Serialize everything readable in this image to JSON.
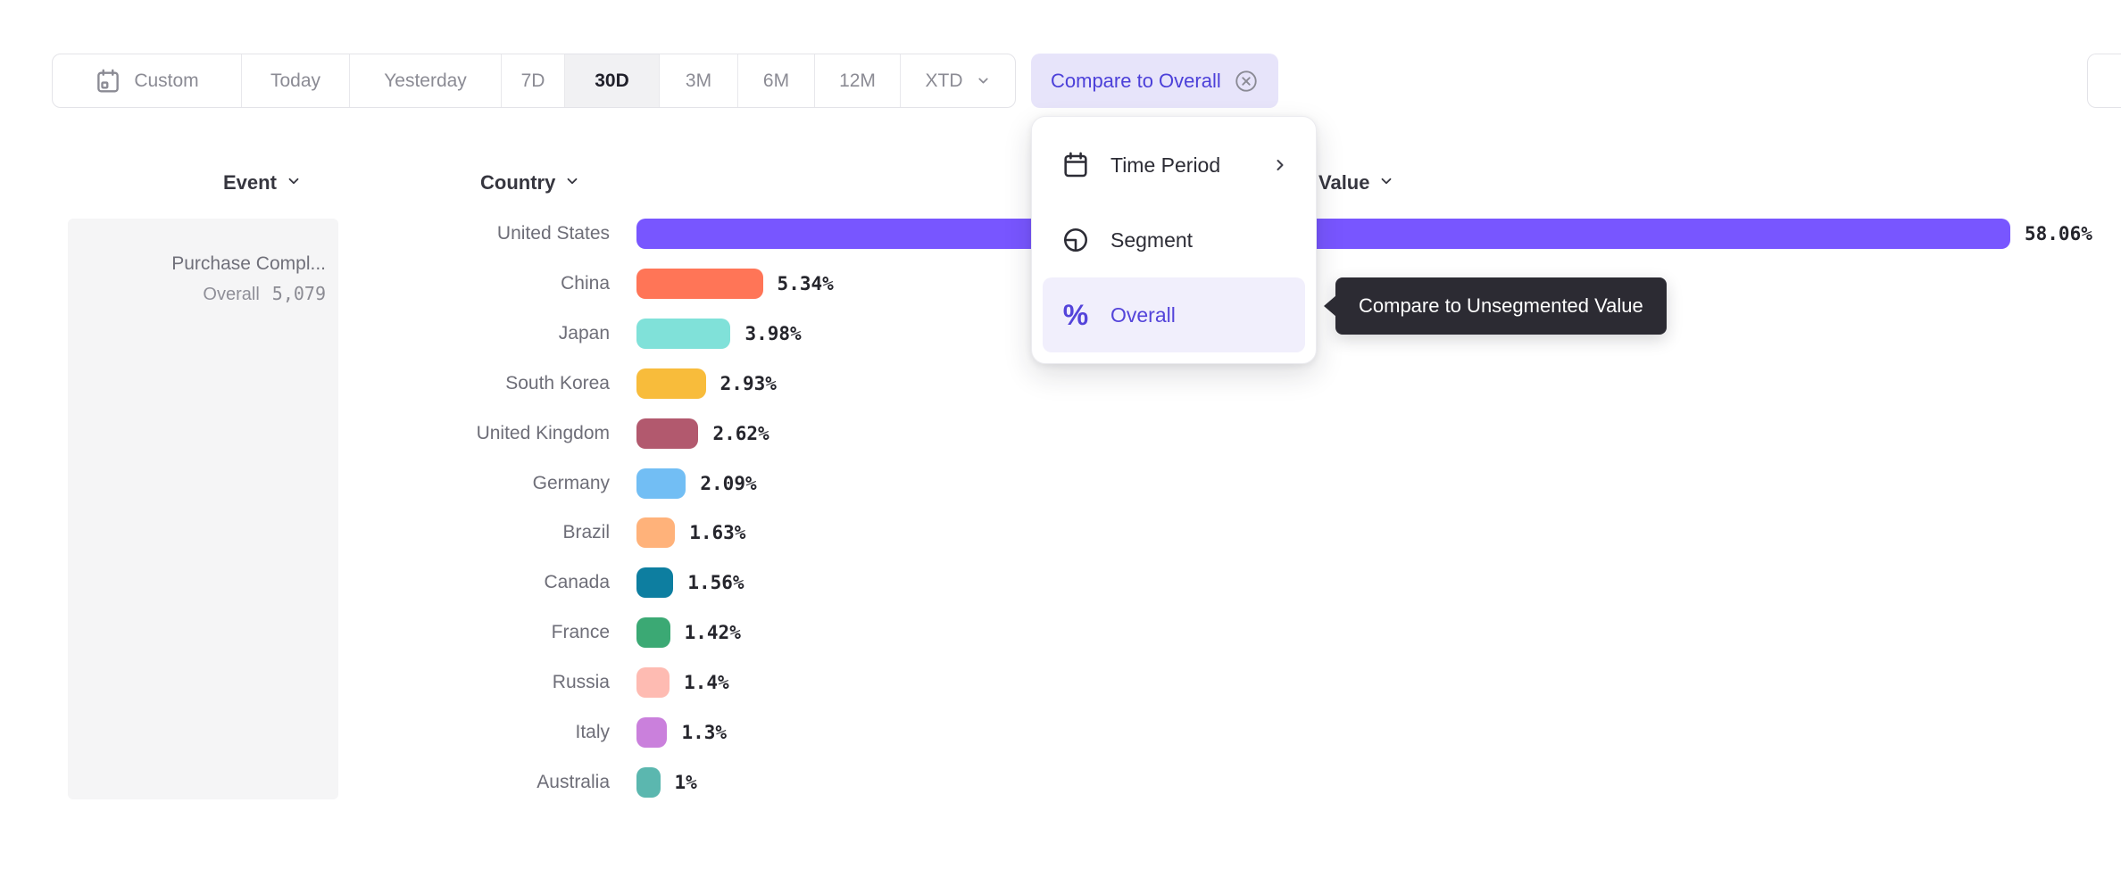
{
  "toolbar": {
    "buttons": [
      {
        "label": "Custom",
        "icon": "calendar-icon",
        "selected": false
      },
      {
        "label": "Today",
        "selected": false
      },
      {
        "label": "Yesterday",
        "selected": false
      },
      {
        "label": "7D",
        "selected": false
      },
      {
        "label": "30D",
        "selected": true
      },
      {
        "label": "3M",
        "selected": false
      },
      {
        "label": "6M",
        "selected": false
      },
      {
        "label": "12M",
        "selected": false
      },
      {
        "label": "XTD",
        "chevron": true,
        "selected": false
      }
    ],
    "compare_chip": {
      "label": "Compare to Overall",
      "icon": "circle-x-icon"
    }
  },
  "headers": {
    "event": "Event",
    "country": "Country",
    "value": "Value"
  },
  "sidebar": {
    "event_name": "Purchase Compl...",
    "overall_label": "Overall",
    "overall_value": "5,079"
  },
  "menu": {
    "items": [
      {
        "label": "Time Period",
        "icon": "calendar-icon",
        "chevron": true,
        "active": false
      },
      {
        "label": "Segment",
        "icon": "segment-icon",
        "chevron": false,
        "active": false
      },
      {
        "label": "Overall",
        "icon": "percent-icon",
        "chevron": false,
        "active": true
      }
    ]
  },
  "tooltip": {
    "text": "Compare to Unsegmented Value"
  },
  "chart_data": {
    "type": "bar",
    "orientation": "horizontal",
    "title": "",
    "xlabel": "Value",
    "ylabel": "Country",
    "categories": [
      "United States",
      "China",
      "Japan",
      "South Korea",
      "United Kingdom",
      "Germany",
      "Brazil",
      "Canada",
      "France",
      "Russia",
      "Italy",
      "Australia"
    ],
    "values": [
      58.06,
      5.34,
      3.98,
      2.93,
      2.62,
      2.09,
      1.63,
      1.56,
      1.42,
      1.4,
      1.3,
      1.0
    ],
    "value_labels": [
      "58.06%",
      "5.34%",
      "3.98%",
      "2.93%",
      "2.62%",
      "2.09%",
      "1.63%",
      "1.56%",
      "1.42%",
      "1.4%",
      "1.3%",
      "1%"
    ],
    "colors": [
      "#7856FF",
      "#FF7557",
      "#80E1D9",
      "#F8BC3B",
      "#B2596E",
      "#72BEF4",
      "#FFB27A",
      "#0D7EA0",
      "#3BA974",
      "#FEBBB2",
      "#CA80DC",
      "#5BB7AF"
    ],
    "xlim": [
      0,
      58.06
    ],
    "grid": false,
    "legend": false
  },
  "colors": {
    "accent_purple": "#7856FF",
    "chip_bg": "#e7e4fa",
    "chip_text": "#4c40d9",
    "tooltip_bg": "#2c2b33",
    "selected_bg": "#f1f1f3",
    "sidebar_bg": "#f5f5f6"
  }
}
